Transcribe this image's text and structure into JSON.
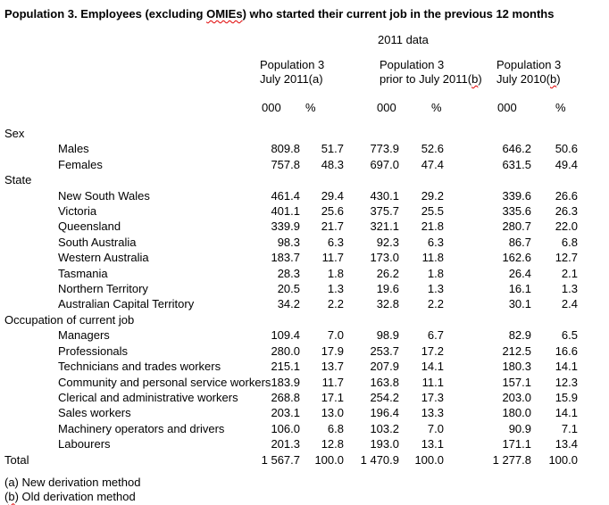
{
  "title": {
    "pre": "Population 3. Employees (excluding ",
    "squiggle": "OMIEs",
    "post": ") who started their current job in the previous 12 months"
  },
  "subtitle": "2011 data",
  "table": {
    "col_groups": [
      {
        "line1": "Population 3",
        "line2_pre": "July 2011(a)",
        "line2_sq": "",
        "line2_post": ""
      },
      {
        "line1": "Population 3",
        "line2_pre": "prior to July 2011(",
        "line2_sq": "b",
        "line2_post": ")"
      },
      {
        "line1": "Population 3",
        "line2_pre": "July 2010(",
        "line2_sq": "b",
        "line2_post": ")"
      }
    ],
    "unit_headers": [
      "000",
      "%",
      "000",
      "%",
      "000",
      "%"
    ],
    "rows": [
      {
        "type": "section",
        "label": "Sex",
        "values": []
      },
      {
        "type": "data",
        "label": "Males",
        "values": [
          "809.8",
          "51.7",
          "773.9",
          "52.6",
          "646.2",
          "50.6"
        ]
      },
      {
        "type": "data",
        "label": "Females",
        "values": [
          "757.8",
          "48.3",
          "697.0",
          "47.4",
          "631.5",
          "49.4"
        ]
      },
      {
        "type": "section",
        "label": "State",
        "values": []
      },
      {
        "type": "data",
        "label": "New South Wales",
        "values": [
          "461.4",
          "29.4",
          "430.1",
          "29.2",
          "339.6",
          "26.6"
        ]
      },
      {
        "type": "data",
        "label": "Victoria",
        "values": [
          "401.1",
          "25.6",
          "375.7",
          "25.5",
          "335.6",
          "26.3"
        ]
      },
      {
        "type": "data",
        "label": "Queensland",
        "values": [
          "339.9",
          "21.7",
          "321.1",
          "21.8",
          "280.7",
          "22.0"
        ]
      },
      {
        "type": "data",
        "label": "South Australia",
        "values": [
          "98.3",
          "6.3",
          "92.3",
          "6.3",
          "86.7",
          "6.8"
        ]
      },
      {
        "type": "data",
        "label": "Western Australia",
        "values": [
          "183.7",
          "11.7",
          "173.0",
          "11.8",
          "162.6",
          "12.7"
        ]
      },
      {
        "type": "data",
        "label": "Tasmania",
        "values": [
          "28.3",
          "1.8",
          "26.2",
          "1.8",
          "26.4",
          "2.1"
        ]
      },
      {
        "type": "data",
        "label": "Northern Territory",
        "values": [
          "20.5",
          "1.3",
          "19.6",
          "1.3",
          "16.1",
          "1.3"
        ]
      },
      {
        "type": "data",
        "label": "Australian Capital Territory",
        "values": [
          "34.2",
          "2.2",
          "32.8",
          "2.2",
          "30.1",
          "2.4"
        ]
      },
      {
        "type": "section",
        "label": "Occupation of current job",
        "values": []
      },
      {
        "type": "data",
        "label": "Managers",
        "values": [
          "109.4",
          "7.0",
          "98.9",
          "6.7",
          "82.9",
          "6.5"
        ]
      },
      {
        "type": "data",
        "label": "Professionals",
        "values": [
          "280.0",
          "17.9",
          "253.7",
          "17.2",
          "212.5",
          "16.6"
        ]
      },
      {
        "type": "data",
        "label": "Technicians and trades workers",
        "values": [
          "215.1",
          "13.7",
          "207.9",
          "14.1",
          "180.3",
          "14.1"
        ]
      },
      {
        "type": "data",
        "label": "Community and personal service workers",
        "values": [
          "183.9",
          "11.7",
          "163.8",
          "11.1",
          "157.1",
          "12.3"
        ]
      },
      {
        "type": "data",
        "label": "Clerical and administrative workers",
        "values": [
          "268.8",
          "17.1",
          "254.2",
          "17.3",
          "203.0",
          "15.9"
        ]
      },
      {
        "type": "data",
        "label": "Sales workers",
        "values": [
          "203.1",
          "13.0",
          "196.4",
          "13.3",
          "180.0",
          "14.1"
        ]
      },
      {
        "type": "data",
        "label": "Machinery operators and drivers",
        "values": [
          "106.0",
          "6.8",
          "103.2",
          "7.0",
          "90.9",
          "7.1"
        ]
      },
      {
        "type": "data",
        "label": "Labourers",
        "values": [
          "201.3",
          "12.8",
          "193.0",
          "13.1",
          "171.1",
          "13.4"
        ]
      },
      {
        "type": "total",
        "label": "Total",
        "values": [
          "1 567.7",
          "100.0",
          "1 470.9",
          "100.0",
          "1 277.8",
          "100.0"
        ]
      }
    ]
  },
  "footnotes": [
    {
      "pre": "(a) New derivation method",
      "sq": "",
      "post": ""
    },
    {
      "pre": "(",
      "sq": "b",
      "post": ") Old derivation method"
    }
  ],
  "colors": {
    "text": "#000000",
    "background": "#ffffff",
    "spellcheck_squiggle": "#e00000"
  }
}
